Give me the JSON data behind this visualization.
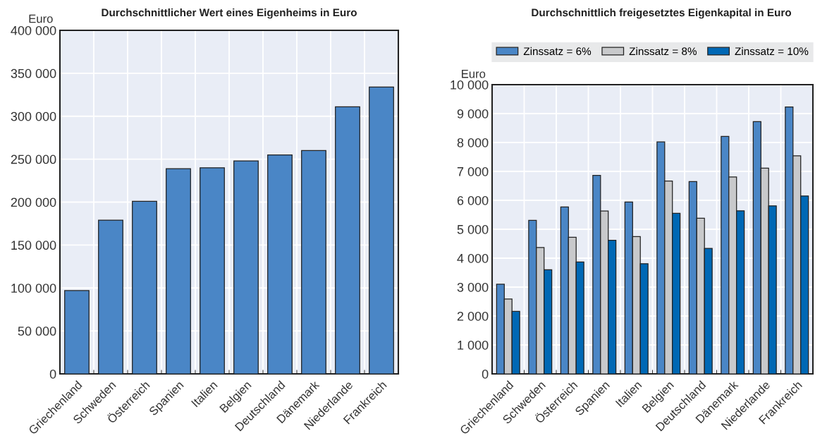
{
  "chart_data": [
    {
      "type": "bar",
      "title": "Durchschnittlicher Wert eines Eigenheims in Euro",
      "ylabel": "Euro",
      "categories": [
        "Griechenland",
        "Schweden",
        "Österreich",
        "Spanien",
        "Italien",
        "Belgien",
        "Deutschland",
        "Dänemark",
        "Niederlande",
        "Frankreich"
      ],
      "series": [
        {
          "color": "#4a86c6",
          "values": [
            97000,
            179000,
            201000,
            239000,
            240000,
            248000,
            255000,
            260000,
            311000,
            334000
          ]
        }
      ],
      "ylim": [
        0,
        400000
      ],
      "yticks": [
        0,
        {
          "value": 50000,
          "label": "50 000"
        },
        {
          "value": 100000,
          "label": "100 000"
        },
        {
          "value": 150000,
          "label": "150 000"
        },
        {
          "value": 200000,
          "label": "200 000"
        },
        {
          "value": 250000,
          "label": "250 000"
        },
        {
          "value": 300000,
          "label": "300 000"
        },
        {
          "value": 350000,
          "label": "350 000"
        },
        {
          "value": 400000,
          "label": "400 000"
        }
      ],
      "grid": true,
      "legend": false
    },
    {
      "type": "bar",
      "title": "Durchschnittlich freigesetztes Eigenkapital in Euro",
      "ylabel": "Euro",
      "categories": [
        "Griechenland",
        "Schweden",
        "Österreich",
        "Spanien",
        "Italien",
        "Belgien",
        "Deutschland",
        "Dänemark",
        "Niederlande",
        "Frankreich"
      ],
      "series": [
        {
          "name": "Zinssatz = 6%",
          "color": "#4a86c6",
          "values": [
            3100,
            5310,
            5770,
            6860,
            5940,
            8020,
            6650,
            8210,
            8720,
            9230
          ]
        },
        {
          "name": "Zinssatz = 8%",
          "color": "#c8c9cb",
          "values": [
            2590,
            4370,
            4720,
            5630,
            4750,
            6670,
            5380,
            6810,
            7110,
            7540
          ]
        },
        {
          "name": "Zinssatz = 10%",
          "color": "#0068b5",
          "values": [
            2160,
            3600,
            3870,
            4620,
            3810,
            5550,
            4340,
            5640,
            5810,
            6150
          ]
        }
      ],
      "ylim": [
        0,
        10000
      ],
      "yticks": [
        0,
        {
          "value": 1000,
          "label": "1 000"
        },
        {
          "value": 2000,
          "label": "2 000"
        },
        {
          "value": 3000,
          "label": "3 000"
        },
        {
          "value": 4000,
          "label": "4 000"
        },
        {
          "value": 5000,
          "label": "5 000"
        },
        {
          "value": 6000,
          "label": "6 000"
        },
        {
          "value": 7000,
          "label": "7 000"
        },
        {
          "value": 8000,
          "label": "8 000"
        },
        {
          "value": 9000,
          "label": "9 000"
        },
        {
          "value": 10000,
          "label": "10 000"
        }
      ],
      "grid": true,
      "legend": "top"
    }
  ]
}
